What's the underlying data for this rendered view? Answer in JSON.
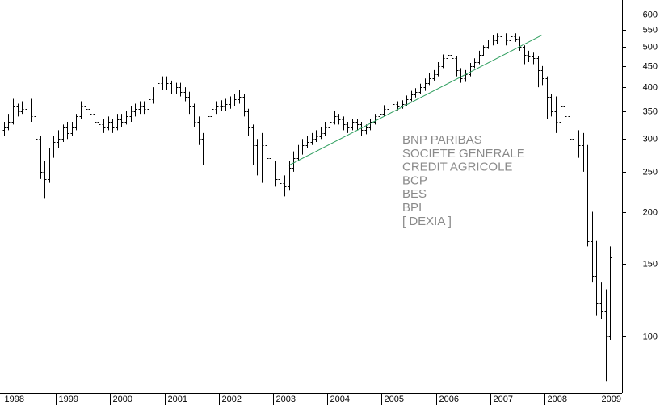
{
  "chart_data": {
    "type": "ohlc",
    "log_scale": true,
    "color": "#000000",
    "categories": [
      "1998",
      null,
      null,
      null,
      null,
      null,
      null,
      null,
      null,
      null,
      null,
      null,
      "1999",
      null,
      null,
      null,
      null,
      null,
      null,
      null,
      null,
      null,
      null,
      null,
      "2000",
      null,
      null,
      null,
      null,
      null,
      null,
      null,
      null,
      null,
      null,
      null,
      "2001",
      null,
      null,
      null,
      null,
      null,
      null,
      null,
      null,
      null,
      null,
      null,
      "2002",
      null,
      null,
      null,
      null,
      null,
      null,
      null,
      null,
      null,
      null,
      null,
      "2003",
      null,
      null,
      null,
      null,
      null,
      null,
      null,
      null,
      null,
      null,
      null,
      "2004",
      null,
      null,
      null,
      null,
      null,
      null,
      null,
      null,
      null,
      null,
      null,
      "2005",
      null,
      null,
      null,
      null,
      null,
      null,
      null,
      null,
      null,
      null,
      null,
      "2006",
      null,
      null,
      null,
      null,
      null,
      null,
      null,
      null,
      null,
      null,
      null,
      "2007",
      null,
      null,
      null,
      null,
      null,
      null,
      null,
      null,
      null,
      null,
      null,
      "2008",
      null,
      null,
      null,
      null,
      null,
      null,
      null,
      null,
      null,
      null,
      null,
      "2009",
      null,
      null
    ],
    "open": [
      315,
      320,
      330,
      360,
      350,
      355,
      370,
      340,
      300,
      250,
      240,
      280,
      295,
      300,
      320,
      310,
      320,
      340,
      360,
      355,
      345,
      330,
      325,
      320,
      330,
      320,
      335,
      330,
      340,
      350,
      355,
      360,
      355,
      375,
      395,
      410,
      415,
      410,
      395,
      400,
      390,
      380,
      360,
      330,
      300,
      280,
      340,
      355,
      360,
      360,
      365,
      370,
      375,
      380,
      350,
      320,
      290,
      260,
      290,
      270,
      260,
      240,
      235,
      230,
      255,
      270,
      280,
      290,
      295,
      300,
      305,
      310,
      320,
      330,
      340,
      335,
      325,
      320,
      330,
      325,
      315,
      320,
      330,
      340,
      345,
      355,
      370,
      365,
      360,
      365,
      375,
      385,
      390,
      400,
      410,
      420,
      430,
      450,
      470,
      480,
      470,
      440,
      420,
      430,
      450,
      460,
      480,
      500,
      510,
      520,
      530,
      535,
      520,
      530,
      525,
      500,
      480,
      475,
      470,
      440,
      420,
      380,
      350,
      330,
      360,
      340,
      300,
      280,
      290,
      260,
      170,
      140,
      120,
      115,
      100
    ],
    "high": [
      330,
      345,
      375,
      365,
      370,
      395,
      375,
      345,
      305,
      265,
      285,
      305,
      315,
      325,
      330,
      330,
      345,
      370,
      365,
      360,
      350,
      340,
      335,
      340,
      335,
      345,
      345,
      350,
      360,
      365,
      370,
      370,
      385,
      400,
      425,
      425,
      425,
      415,
      410,
      410,
      400,
      390,
      365,
      340,
      310,
      350,
      365,
      370,
      372,
      375,
      380,
      385,
      395,
      385,
      355,
      325,
      300,
      310,
      300,
      280,
      265,
      250,
      245,
      265,
      280,
      290,
      300,
      305,
      310,
      315,
      320,
      330,
      340,
      350,
      345,
      340,
      330,
      335,
      335,
      330,
      325,
      335,
      345,
      355,
      362,
      378,
      375,
      370,
      372,
      382,
      392,
      398,
      408,
      420,
      432,
      440,
      460,
      480,
      490,
      485,
      475,
      445,
      440,
      458,
      470,
      490,
      505,
      520,
      535,
      540,
      540,
      540,
      540,
      540,
      530,
      505,
      490,
      485,
      475,
      450,
      425,
      385,
      380,
      375,
      370,
      345,
      310,
      315,
      310,
      290,
      200,
      170,
      135,
      130,
      165
    ],
    "low": [
      305,
      315,
      325,
      340,
      345,
      350,
      330,
      290,
      240,
      215,
      235,
      270,
      285,
      295,
      300,
      305,
      315,
      335,
      345,
      335,
      320,
      315,
      310,
      315,
      310,
      315,
      320,
      325,
      330,
      340,
      345,
      345,
      350,
      365,
      385,
      395,
      395,
      385,
      385,
      380,
      370,
      345,
      320,
      290,
      260,
      275,
      335,
      345,
      350,
      350,
      355,
      360,
      365,
      340,
      305,
      260,
      245,
      235,
      255,
      245,
      230,
      225,
      218,
      225,
      250,
      265,
      275,
      285,
      290,
      295,
      300,
      305,
      315,
      325,
      325,
      315,
      310,
      315,
      315,
      305,
      308,
      315,
      325,
      335,
      340,
      350,
      358,
      352,
      355,
      360,
      370,
      378,
      385,
      392,
      405,
      415,
      425,
      445,
      460,
      455,
      425,
      410,
      412,
      425,
      445,
      455,
      475,
      495,
      505,
      510,
      515,
      505,
      510,
      515,
      490,
      455,
      460,
      455,
      400,
      405,
      335,
      340,
      310,
      325,
      330,
      285,
      245,
      270,
      250,
      165,
      135,
      112,
      110,
      78,
      98
    ],
    "close": [
      320,
      330,
      360,
      350,
      355,
      370,
      340,
      300,
      250,
      240,
      280,
      295,
      300,
      320,
      310,
      320,
      340,
      360,
      355,
      345,
      330,
      325,
      320,
      330,
      320,
      335,
      330,
      340,
      350,
      355,
      360,
      355,
      375,
      395,
      410,
      415,
      410,
      395,
      400,
      390,
      380,
      360,
      330,
      300,
      280,
      340,
      355,
      360,
      360,
      365,
      370,
      375,
      380,
      350,
      320,
      290,
      260,
      290,
      270,
      260,
      240,
      235,
      230,
      255,
      270,
      280,
      290,
      295,
      300,
      305,
      310,
      320,
      330,
      340,
      335,
      325,
      320,
      330,
      325,
      315,
      320,
      330,
      340,
      345,
      355,
      370,
      365,
      360,
      365,
      375,
      385,
      390,
      400,
      410,
      420,
      430,
      450,
      470,
      480,
      470,
      440,
      420,
      430,
      450,
      460,
      480,
      500,
      510,
      520,
      530,
      535,
      520,
      530,
      525,
      500,
      480,
      475,
      470,
      440,
      420,
      380,
      350,
      330,
      360,
      340,
      300,
      280,
      290,
      260,
      170,
      140,
      120,
      115,
      100,
      155
    ],
    "ylim": [
      73,
      650
    ],
    "yticks": [
      100,
      150,
      200,
      250,
      300,
      350,
      400,
      450,
      500,
      550,
      600
    ],
    "trendline": {
      "start": [
        63,
        259
      ],
      "end": [
        119,
        535
      ],
      "color": "#2e9e5e"
    },
    "annotations": [
      "BNP PARIBAS",
      "SOCIETE GENERALE",
      "CREDIT AGRICOLE",
      "BCP",
      "BES",
      "BPI",
      "[ DEXIA ]"
    ],
    "annotation_color": "#8a8a8a"
  }
}
